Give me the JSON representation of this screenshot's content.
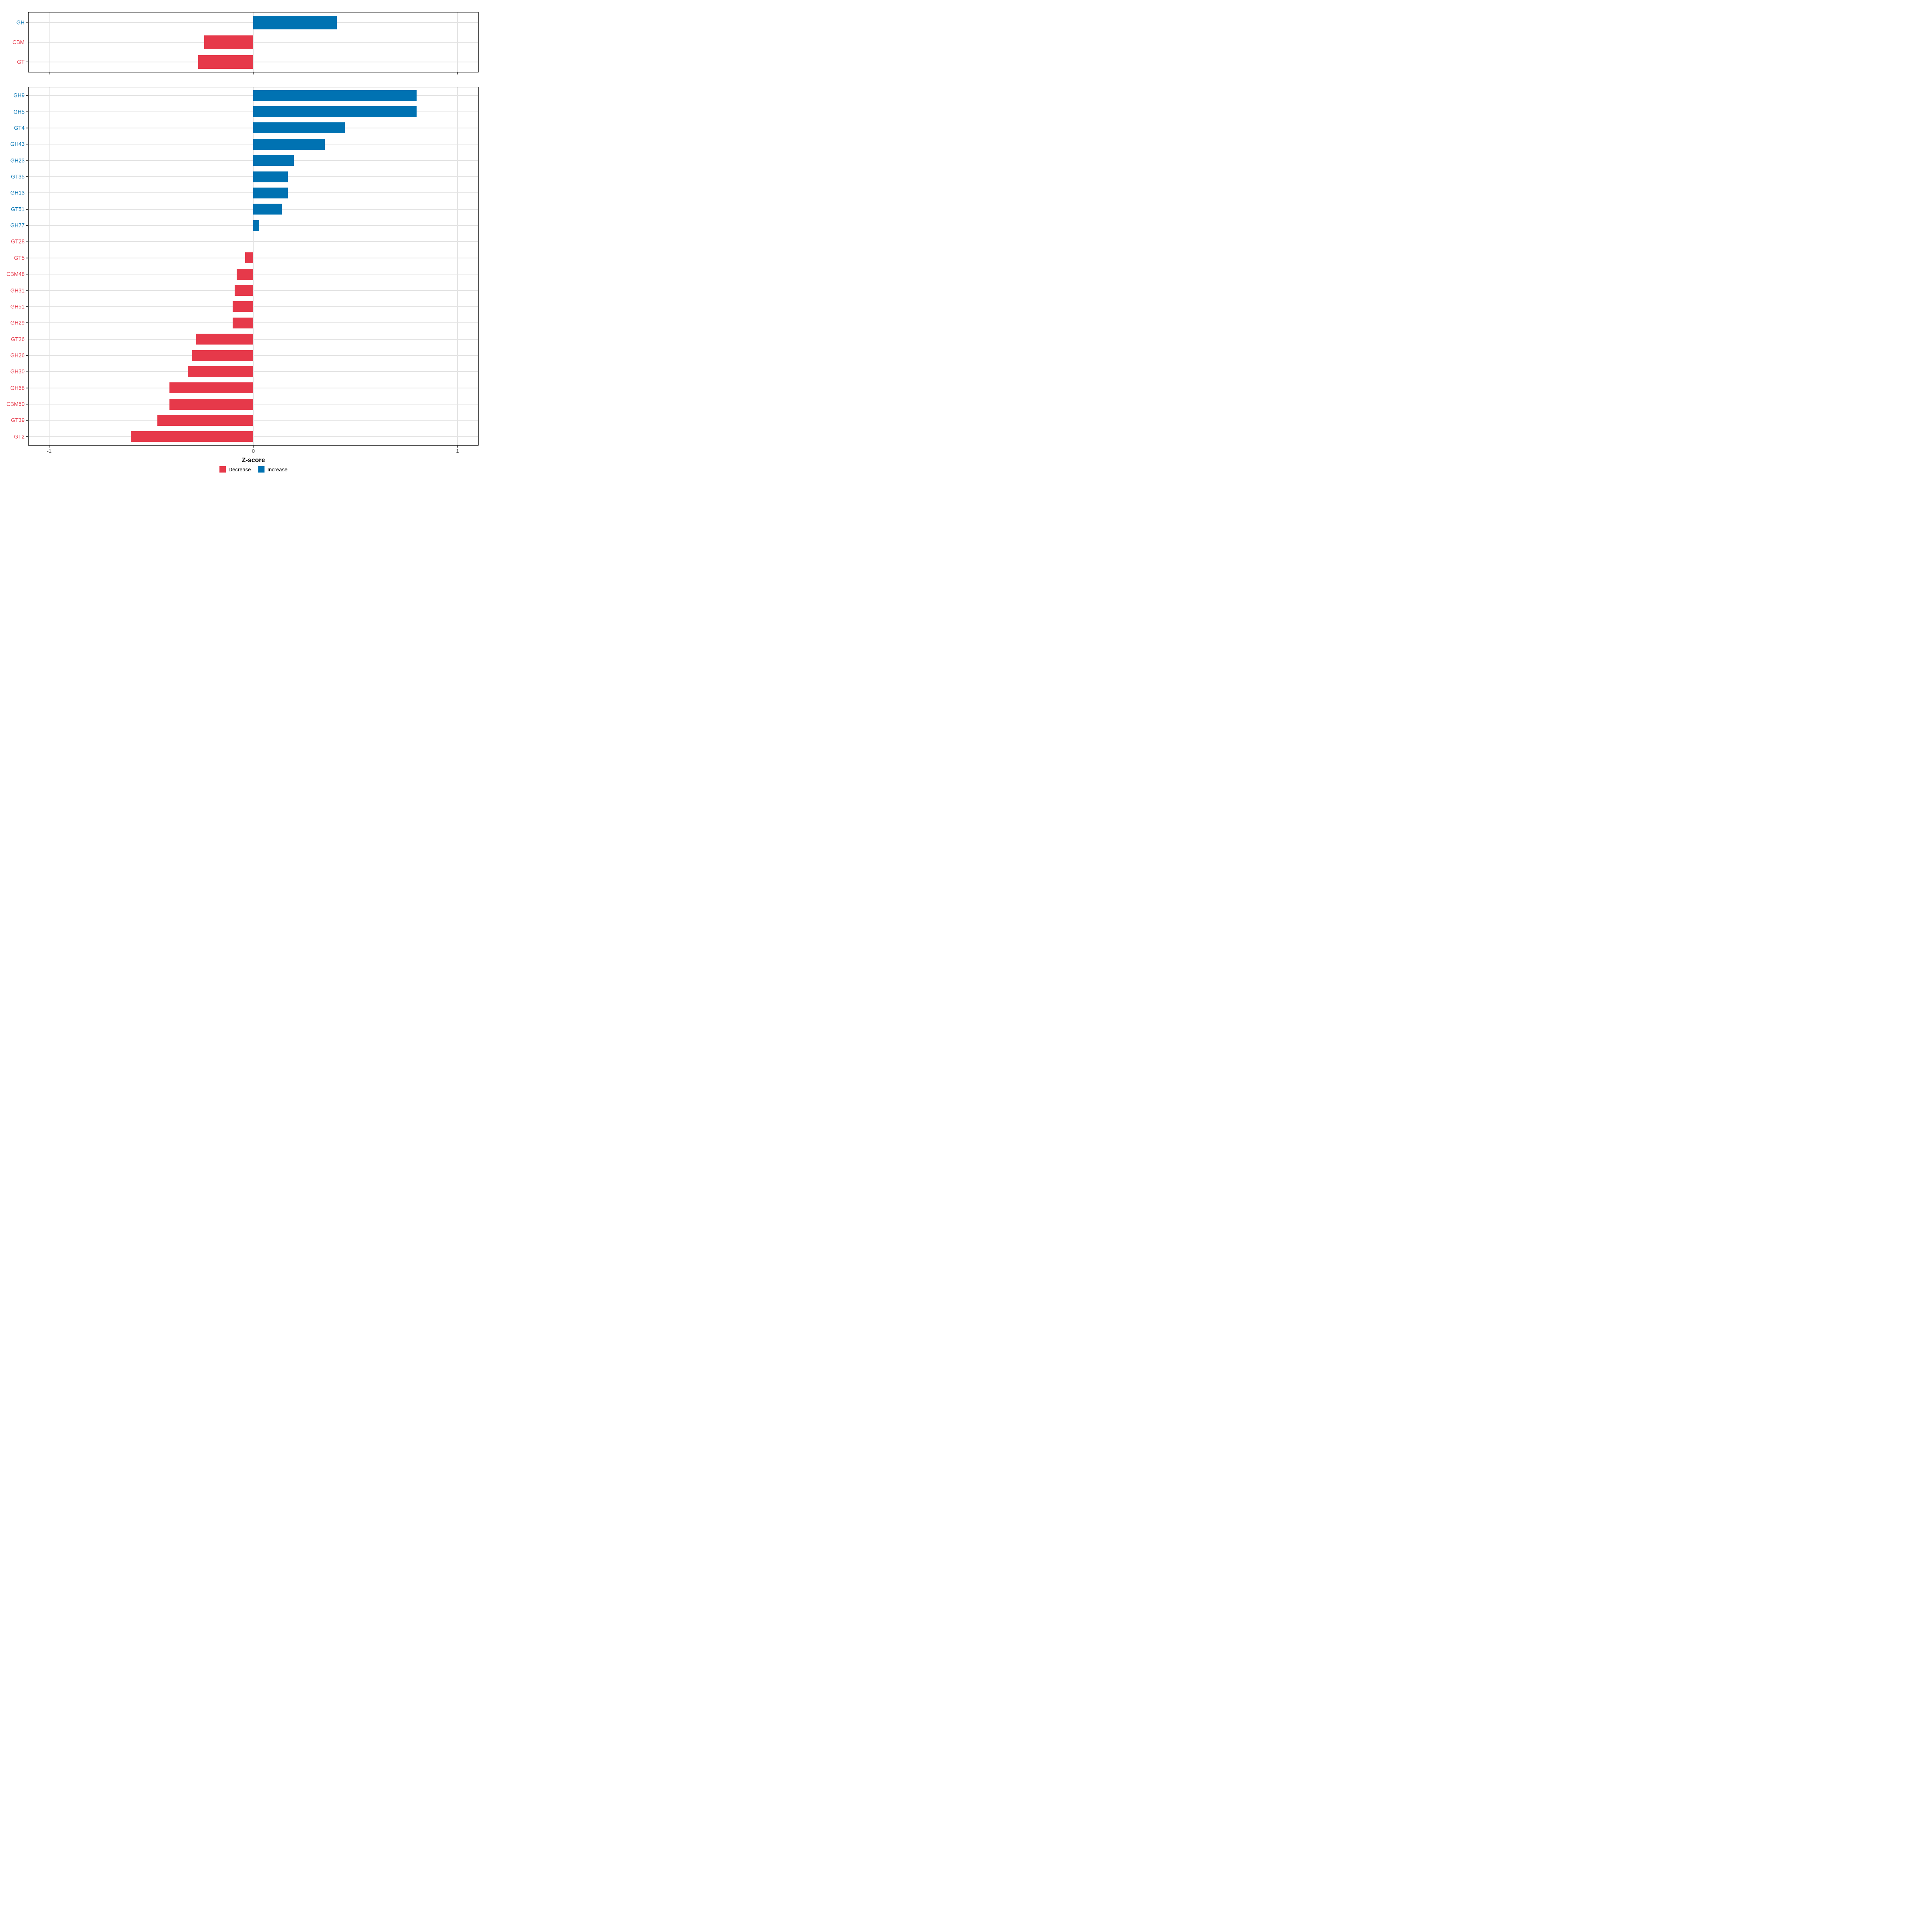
{
  "figure": {
    "background": "#FFFFFF"
  },
  "axis": {
    "xlabel": "Z-score",
    "tick_values": [
      -1,
      0,
      1
    ],
    "tick_labels": [
      "-1",
      "0",
      "1"
    ],
    "tick_text_color": "#4D4D4D"
  },
  "legend": {
    "items": [
      {
        "label": "Decrease",
        "color": "#E6394A"
      },
      {
        "label": "Increase",
        "color": "#0072B2"
      }
    ]
  },
  "colors": {
    "increase": "#0072B2",
    "decrease": "#E6394A",
    "grid_h": "#E3E3E3",
    "grid_v": "#DCDCDC",
    "panel_border": "#1A1A1A"
  },
  "chart_data": [
    {
      "type": "bar",
      "orientation": "horizontal",
      "panel": "summary",
      "xlabel": "Z-score",
      "xlim": [
        -1.1,
        1.1
      ],
      "x_ticks": [
        -1,
        0,
        1
      ],
      "grid": true,
      "legend_position": "bottom",
      "rows": [
        {
          "label": "GH",
          "value": 0.41,
          "direction": "Increase"
        },
        {
          "label": "CBM",
          "value": -0.24,
          "direction": "Decrease"
        },
        {
          "label": "GT",
          "value": -0.27,
          "direction": "Decrease"
        }
      ]
    },
    {
      "type": "bar",
      "orientation": "horizontal",
      "panel": "families",
      "xlabel": "Z-score",
      "xlim": [
        -1.1,
        1.1
      ],
      "x_ticks": [
        -1,
        0,
        1
      ],
      "grid": true,
      "legend_position": "bottom",
      "rows": [
        {
          "label": "GH9",
          "value": 0.8,
          "direction": "Increase"
        },
        {
          "label": "GH5",
          "value": 0.8,
          "direction": "Increase"
        },
        {
          "label": "GT4",
          "value": 0.45,
          "direction": "Increase"
        },
        {
          "label": "GH43",
          "value": 0.35,
          "direction": "Increase"
        },
        {
          "label": "GH23",
          "value": 0.2,
          "direction": "Increase"
        },
        {
          "label": "GT35",
          "value": 0.17,
          "direction": "Increase"
        },
        {
          "label": "GH13",
          "value": 0.17,
          "direction": "Increase"
        },
        {
          "label": "GT51",
          "value": 0.14,
          "direction": "Increase"
        },
        {
          "label": "GH77",
          "value": 0.03,
          "direction": "Increase"
        },
        {
          "label": "GT28",
          "value": 0.0,
          "direction": "Decrease"
        },
        {
          "label": "GT5",
          "value": -0.04,
          "direction": "Decrease"
        },
        {
          "label": "CBM48",
          "value": -0.08,
          "direction": "Decrease"
        },
        {
          "label": "GH31",
          "value": -0.09,
          "direction": "Decrease"
        },
        {
          "label": "GH51",
          "value": -0.1,
          "direction": "Decrease"
        },
        {
          "label": "GH29",
          "value": -0.1,
          "direction": "Decrease"
        },
        {
          "label": "GT26",
          "value": -0.28,
          "direction": "Decrease"
        },
        {
          "label": "GH26",
          "value": -0.3,
          "direction": "Decrease"
        },
        {
          "label": "GH30",
          "value": -0.32,
          "direction": "Decrease"
        },
        {
          "label": "GH68",
          "value": -0.41,
          "direction": "Decrease"
        },
        {
          "label": "CBM50",
          "value": -0.41,
          "direction": "Decrease"
        },
        {
          "label": "GT39",
          "value": -0.47,
          "direction": "Decrease"
        },
        {
          "label": "GT2",
          "value": -0.6,
          "direction": "Decrease"
        }
      ]
    }
  ]
}
